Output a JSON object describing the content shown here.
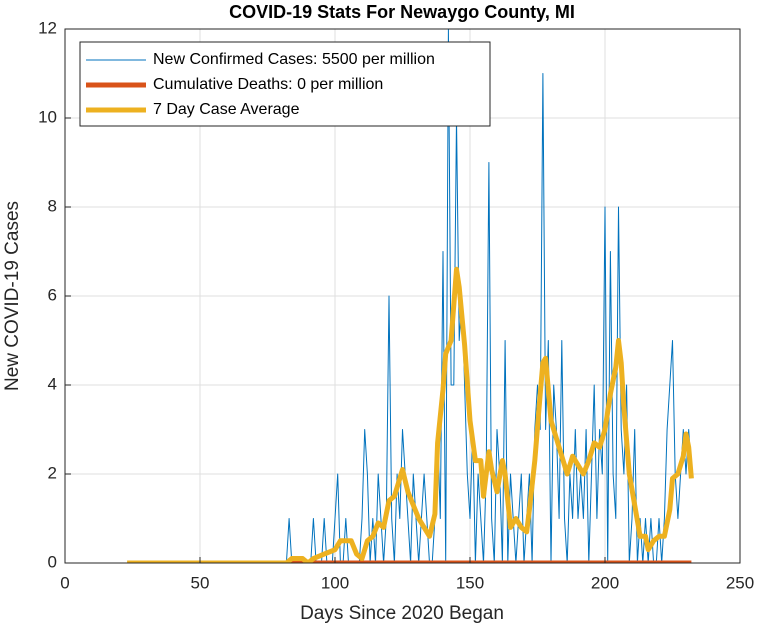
{
  "chart_data": {
    "type": "line",
    "title": "COVID-19 Stats For Newaygo County, MI",
    "x_label": "Days Since 2020 Began",
    "y_label": "New COVID-19 Cases",
    "xlim": [
      0,
      250
    ],
    "xticks": [
      0,
      50,
      100,
      150,
      200,
      250
    ],
    "ylim": [
      0,
      12
    ],
    "yticks": [
      0,
      2,
      4,
      6,
      8,
      10,
      12
    ],
    "grid": true,
    "legend": "upper-left",
    "series": [
      {
        "name": "New Confirmed Cases: 5500 per million",
        "color": "#0072BD",
        "width": 1,
        "x": [
          80,
          81,
          82,
          83,
          84,
          85,
          86,
          87,
          88,
          89,
          90,
          91,
          92,
          93,
          94,
          95,
          96,
          97,
          98,
          99,
          100,
          101,
          102,
          103,
          104,
          105,
          106,
          107,
          108,
          109,
          110,
          111,
          112,
          113,
          114,
          115,
          116,
          117,
          118,
          119,
          120,
          121,
          122,
          123,
          124,
          125,
          126,
          127,
          128,
          129,
          130,
          131,
          132,
          133,
          134,
          135,
          136,
          137,
          138,
          139,
          140,
          141,
          142,
          143,
          144,
          145,
          146,
          147,
          148,
          149,
          150,
          151,
          152,
          153,
          154,
          155,
          156,
          157,
          158,
          159,
          160,
          161,
          162,
          163,
          164,
          165,
          166,
          167,
          168,
          169,
          170,
          171,
          172,
          173,
          174,
          175,
          176,
          177,
          178,
          179,
          180,
          181,
          182,
          183,
          184,
          185,
          186,
          187,
          188,
          189,
          190,
          191,
          192,
          193,
          194,
          195,
          196,
          197,
          198,
          199,
          200,
          201,
          202,
          203,
          204,
          205,
          206,
          207,
          208,
          209,
          210,
          211,
          212,
          213,
          214,
          215,
          216,
          217,
          218,
          219,
          220,
          221,
          222,
          223,
          224,
          225,
          226,
          227,
          228,
          229,
          230,
          231,
          232
        ],
        "values": [
          0,
          0,
          0,
          1,
          0,
          0,
          0,
          0,
          0,
          0,
          0,
          0,
          1,
          0,
          0,
          0,
          1,
          0,
          0,
          0,
          1,
          2,
          0,
          0,
          1,
          0,
          0,
          0,
          0,
          0,
          1,
          3,
          2,
          0,
          1,
          0,
          2,
          1,
          0,
          1,
          6,
          1,
          0,
          2,
          1,
          3,
          2,
          1,
          0,
          2,
          1,
          0,
          1,
          2,
          1,
          0,
          0,
          1,
          3,
          1,
          7,
          0,
          12,
          4,
          4,
          10,
          5,
          6,
          4,
          2,
          1,
          3,
          0,
          2,
          1,
          0,
          2,
          9,
          1,
          0,
          3,
          2,
          0,
          5,
          0,
          2,
          1,
          0,
          1,
          2,
          0,
          1,
          2,
          0,
          3,
          4,
          3,
          11,
          3,
          5,
          0,
          4,
          3,
          1,
          5,
          1,
          0,
          2,
          1,
          3,
          1,
          2,
          1,
          3,
          0,
          2,
          4,
          1,
          3,
          2,
          8,
          0,
          7,
          2,
          1,
          8,
          3,
          2,
          4,
          0,
          1,
          3,
          0,
          1,
          0,
          1,
          0,
          1,
          0,
          0,
          1,
          0,
          1,
          3,
          4,
          5,
          2,
          1,
          2,
          3,
          2,
          3,
          2
        ]
      },
      {
        "name": "Cumulative Deaths: 0 per million",
        "color": "#D95319",
        "width": 5,
        "x": [
          83,
          232
        ],
        "values": [
          0,
          0
        ]
      },
      {
        "name": "7 Day Case Average",
        "color": "#EDB120",
        "width": 5,
        "x": [
          23,
          82,
          84,
          88,
          90,
          92,
          96,
          100,
          102,
          106,
          108,
          110,
          112,
          114,
          116,
          118,
          120,
          122,
          124,
          125,
          127,
          129,
          131,
          133,
          135,
          137,
          138,
          140,
          141,
          143,
          145,
          146,
          148,
          150,
          152,
          154,
          155,
          157,
          158,
          160,
          162,
          163,
          164,
          165,
          167,
          169,
          171,
          172,
          174,
          176,
          177,
          178,
          180,
          182,
          184,
          186,
          188,
          190,
          192,
          194,
          196,
          198,
          200,
          202,
          204,
          205,
          206,
          207,
          209,
          211,
          213,
          215,
          216,
          218,
          220,
          222,
          224,
          225,
          227,
          229,
          230,
          231,
          232
        ],
        "values": [
          0,
          0,
          0.1,
          0.1,
          0,
          0.1,
          0.2,
          0.3,
          0.5,
          0.5,
          0.2,
          0.1,
          0.5,
          0.6,
          0.9,
          0.8,
          1.4,
          1.5,
          1.9,
          2.1,
          1.6,
          1.3,
          1.0,
          0.8,
          0.6,
          1.1,
          2.7,
          3.9,
          4.7,
          5.0,
          6.6,
          6.2,
          4.9,
          3.2,
          2.3,
          2.3,
          1.5,
          2.5,
          2.1,
          1.6,
          2.3,
          2.0,
          1.4,
          0.8,
          1.0,
          0.8,
          0.7,
          1.2,
          2.3,
          3.8,
          4.5,
          4.6,
          3.2,
          2.8,
          2.4,
          2.0,
          2.4,
          2.2,
          2.0,
          2.3,
          2.7,
          2.6,
          3.0,
          3.8,
          4.4,
          5.0,
          4.5,
          3.5,
          2.0,
          1.3,
          0.6,
          0.6,
          0.3,
          0.5,
          0.6,
          0.6,
          1.2,
          1.9,
          2.0,
          2.4,
          2.9,
          2.6,
          1.9
        ]
      }
    ]
  }
}
